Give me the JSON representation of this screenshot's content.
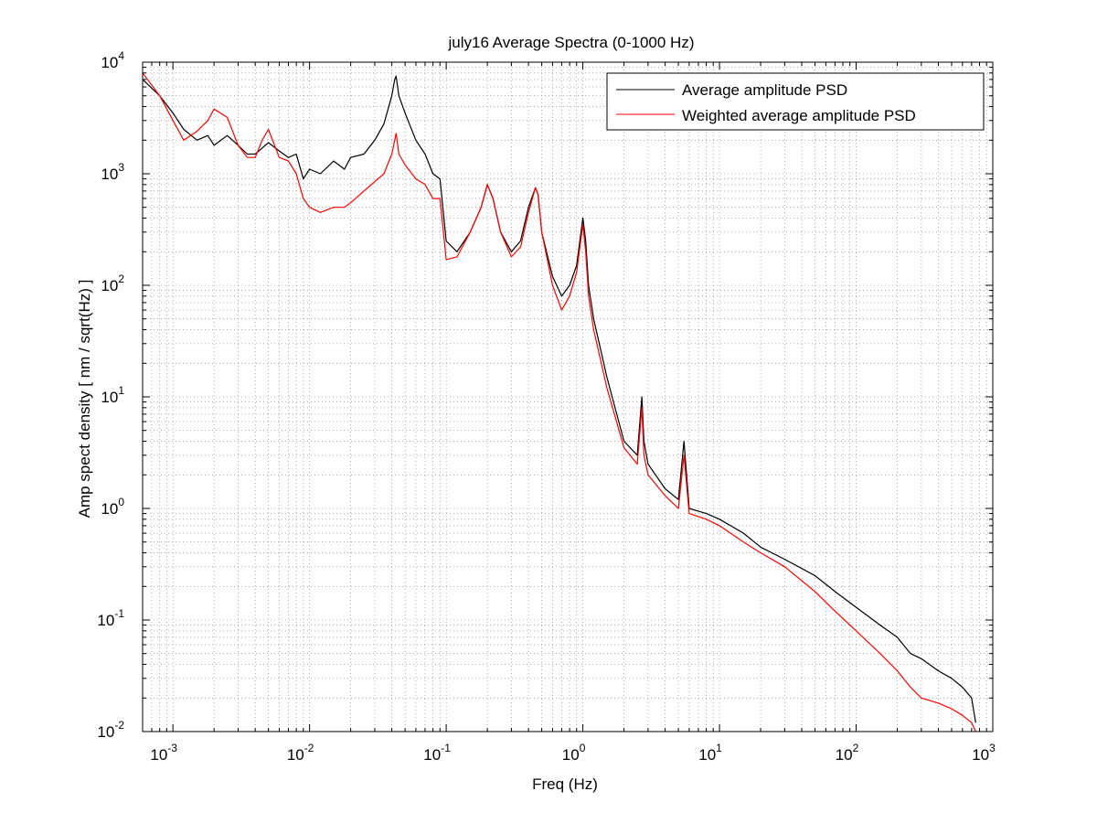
{
  "chart_data": {
    "type": "line",
    "title": "july16 Average Spectra (0-1000 Hz)",
    "xlabel": "Freq (Hz)",
    "ylabel": "Amp spect density [ nm / sqrt(Hz) ]",
    "xscale": "log",
    "yscale": "log",
    "xlim": [
      0.0006,
      1000
    ],
    "ylim": [
      0.01,
      10000
    ],
    "grid": "on (major and minor, dotted)",
    "legend_position": "top-right",
    "x_ticks": [
      {
        "base": "10",
        "exp": "-3"
      },
      {
        "base": "10",
        "exp": "-2"
      },
      {
        "base": "10",
        "exp": "-1"
      },
      {
        "base": "10",
        "exp": "0"
      },
      {
        "base": "10",
        "exp": "1"
      },
      {
        "base": "10",
        "exp": "2"
      },
      {
        "base": "10",
        "exp": "3"
      }
    ],
    "y_ticks": [
      {
        "base": "10",
        "exp": "-2"
      },
      {
        "base": "10",
        "exp": "-1"
      },
      {
        "base": "10",
        "exp": "0"
      },
      {
        "base": "10",
        "exp": "1"
      },
      {
        "base": "10",
        "exp": "2"
      },
      {
        "base": "10",
        "exp": "3"
      },
      {
        "base": "10",
        "exp": "4"
      }
    ],
    "series": [
      {
        "name": "Average amplitude PSD",
        "color": "#000000",
        "x": [
          0.0006,
          0.0008,
          0.001,
          0.0012,
          0.0015,
          0.0018,
          0.002,
          0.0025,
          0.003,
          0.0035,
          0.004,
          0.0045,
          0.005,
          0.006,
          0.007,
          0.008,
          0.009,
          0.01,
          0.012,
          0.015,
          0.018,
          0.02,
          0.025,
          0.03,
          0.035,
          0.04,
          0.042,
          0.043,
          0.045,
          0.05,
          0.06,
          0.07,
          0.08,
          0.09,
          0.1,
          0.12,
          0.15,
          0.18,
          0.2,
          0.22,
          0.25,
          0.3,
          0.35,
          0.4,
          0.45,
          0.47,
          0.5,
          0.6,
          0.7,
          0.8,
          0.9,
          1.0,
          1.05,
          1.1,
          1.2,
          1.5,
          2,
          2.5,
          2.7,
          2.8,
          3,
          4,
          5,
          5.5,
          6,
          8,
          10,
          15,
          20,
          30,
          50,
          70,
          100,
          150,
          200,
          250,
          300,
          400,
          500,
          600,
          700,
          750
        ],
        "y": [
          7000,
          5000,
          3500,
          2500,
          2000,
          2200,
          1800,
          2200,
          1800,
          1500,
          1500,
          1700,
          1900,
          1600,
          1400,
          1500,
          900,
          1100,
          1000,
          1300,
          1100,
          1400,
          1500,
          2000,
          2800,
          5000,
          7000,
          7500,
          5000,
          3500,
          2000,
          1500,
          1000,
          900,
          250,
          200,
          300,
          500,
          800,
          600,
          300,
          200,
          250,
          500,
          750,
          650,
          300,
          120,
          80,
          100,
          150,
          400,
          250,
          100,
          50,
          15,
          4,
          3,
          10,
          4,
          2.5,
          1.5,
          1.2,
          4,
          1.0,
          0.9,
          0.8,
          0.6,
          0.45,
          0.35,
          0.25,
          0.18,
          0.13,
          0.09,
          0.07,
          0.05,
          0.045,
          0.035,
          0.03,
          0.025,
          0.02,
          0.012
        ]
      },
      {
        "name": "Weighted average amplitude PSD",
        "color": "#ff0000",
        "x": [
          0.0006,
          0.0008,
          0.001,
          0.0012,
          0.0015,
          0.0018,
          0.002,
          0.0025,
          0.003,
          0.0035,
          0.004,
          0.0045,
          0.005,
          0.006,
          0.007,
          0.008,
          0.009,
          0.01,
          0.012,
          0.015,
          0.018,
          0.02,
          0.025,
          0.03,
          0.035,
          0.04,
          0.042,
          0.043,
          0.045,
          0.05,
          0.06,
          0.07,
          0.08,
          0.09,
          0.1,
          0.12,
          0.15,
          0.18,
          0.2,
          0.22,
          0.25,
          0.3,
          0.35,
          0.4,
          0.45,
          0.47,
          0.5,
          0.6,
          0.7,
          0.8,
          0.9,
          1.0,
          1.05,
          1.1,
          1.2,
          1.5,
          2,
          2.5,
          2.7,
          2.8,
          3,
          4,
          5,
          5.5,
          6,
          8,
          10,
          15,
          20,
          30,
          50,
          70,
          100,
          150,
          200,
          250,
          300,
          400,
          500,
          600,
          700,
          750
        ],
        "y": [
          8000,
          5000,
          3000,
          2000,
          2400,
          3000,
          3800,
          3200,
          1800,
          1400,
          1400,
          2000,
          2500,
          1400,
          1300,
          1000,
          600,
          500,
          450,
          500,
          500,
          550,
          700,
          850,
          1000,
          1500,
          2000,
          2300,
          1500,
          1200,
          900,
          800,
          600,
          600,
          170,
          180,
          300,
          500,
          800,
          600,
          300,
          180,
          220,
          450,
          750,
          650,
          300,
          100,
          60,
          80,
          130,
          350,
          200,
          80,
          40,
          12,
          3.5,
          2.5,
          8,
          3,
          2.0,
          1.3,
          1.0,
          3,
          0.9,
          0.8,
          0.7,
          0.5,
          0.4,
          0.3,
          0.18,
          0.12,
          0.08,
          0.05,
          0.035,
          0.025,
          0.02,
          0.018,
          0.016,
          0.014,
          0.012,
          0.01
        ]
      }
    ]
  }
}
